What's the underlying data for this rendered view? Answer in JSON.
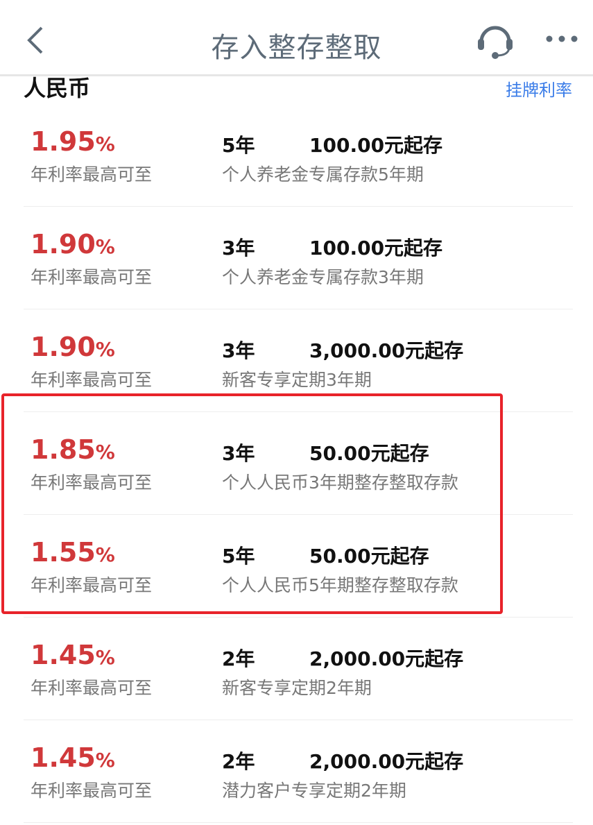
{
  "header": {
    "title": "存入整存整取",
    "back_icon": "chevron-left-icon",
    "service_icon": "headset-icon",
    "more_icon": "more-dots-icon"
  },
  "section": {
    "title": "人民币",
    "listed_rates_link": "挂牌利率"
  },
  "colors": {
    "rate": "#d0383a",
    "link": "#3a7ce8",
    "highlight": "#e8232a"
  },
  "rows": [
    {
      "rate": "1.95",
      "unit": "%",
      "label": "年利率最高可至",
      "term": "5年",
      "min": "100.00元起存",
      "name": "个人养老金专属存款5年期"
    },
    {
      "rate": "1.90",
      "unit": "%",
      "label": "年利率最高可至",
      "term": "3年",
      "min": "100.00元起存",
      "name": "个人养老金专属存款3年期"
    },
    {
      "rate": "1.90",
      "unit": "%",
      "label": "年利率最高可至",
      "term": "3年",
      "min": "3,000.00元起存",
      "name": "新客专享定期3年期"
    },
    {
      "rate": "1.85",
      "unit": "%",
      "label": "年利率最高可至",
      "term": "3年",
      "min": "50.00元起存",
      "name": "个人人民币3年期整存整取存款"
    },
    {
      "rate": "1.55",
      "unit": "%",
      "label": "年利率最高可至",
      "term": "5年",
      "min": "50.00元起存",
      "name": "个人人民币5年期整存整取存款"
    },
    {
      "rate": "1.45",
      "unit": "%",
      "label": "年利率最高可至",
      "term": "2年",
      "min": "2,000.00元起存",
      "name": "新客专享定期2年期"
    },
    {
      "rate": "1.45",
      "unit": "%",
      "label": "年利率最高可至",
      "term": "2年",
      "min": "2,000.00元起存",
      "name": "潜力客户专享定期2年期"
    }
  ]
}
